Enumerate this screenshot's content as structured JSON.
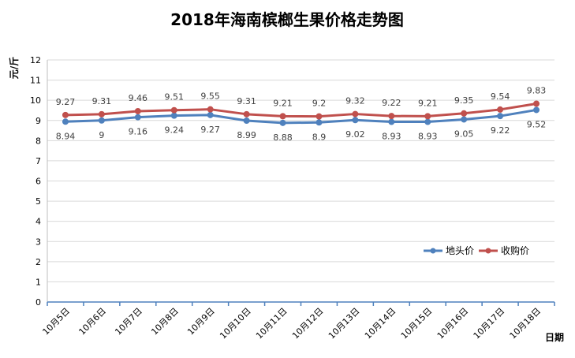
{
  "chart_data": {
    "type": "line",
    "title": "2018年海南槟榔生果价格走势图",
    "ylabel": "元/斤",
    "xlabel": "日期",
    "ylim": [
      0,
      12
    ],
    "yticks": [
      0,
      1,
      2,
      3,
      4,
      5,
      6,
      7,
      8,
      9,
      10,
      11,
      12
    ],
    "grid": true,
    "legend_position": "right",
    "categories": [
      "10月5日",
      "10月6日",
      "10月7日",
      "10月8日",
      "10月9日",
      "10月10日",
      "10月11日",
      "10月12日",
      "10月13日",
      "10月14日",
      "10月15日",
      "10月16日",
      "10月17日",
      "10月18日"
    ],
    "series": [
      {
        "name": "地头价",
        "color": "#4f81bd",
        "values": [
          8.94,
          9,
          9.16,
          9.24,
          9.27,
          8.99,
          8.88,
          8.9,
          9.02,
          8.93,
          8.93,
          9.05,
          9.22,
          9.52
        ],
        "labels": [
          "8.94",
          "9",
          "9.16",
          "9.24",
          "9.27",
          "8.99",
          "8.88",
          "8.9",
          "9.02",
          "8.93",
          "8.93",
          "9.05",
          "9.22",
          "9.52"
        ]
      },
      {
        "name": "收购价",
        "color": "#c0504d",
        "values": [
          9.27,
          9.31,
          9.46,
          9.51,
          9.55,
          9.31,
          9.21,
          9.2,
          9.32,
          9.22,
          9.21,
          9.35,
          9.54,
          9.83
        ],
        "labels": [
          "9.27",
          "9.31",
          "9.46",
          "9.51",
          "9.55",
          "9.31",
          "9.21",
          "9.2",
          "9.32",
          "9.22",
          "9.21",
          "9.35",
          "9.54",
          "9.83"
        ]
      }
    ]
  }
}
